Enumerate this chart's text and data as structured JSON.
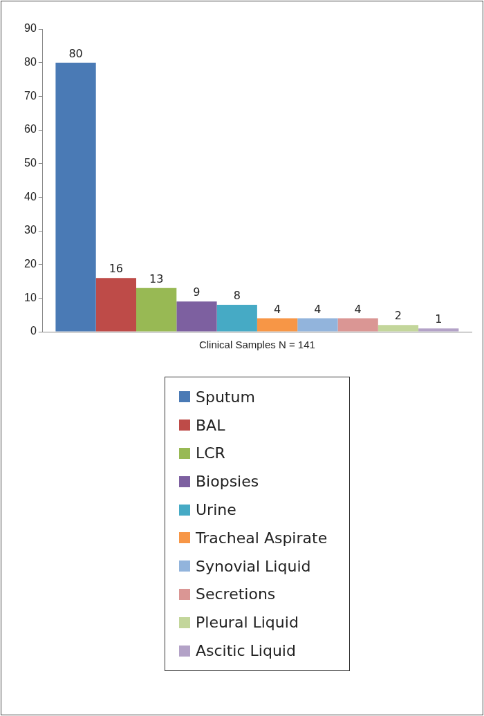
{
  "chart_data": {
    "type": "bar",
    "categories": [
      "Clinical Samples N = 141"
    ],
    "series": [
      {
        "name": "Sputum",
        "color": "#4a7ab5",
        "values": [
          80
        ]
      },
      {
        "name": "BAL",
        "color": "#be4b48",
        "values": [
          16
        ]
      },
      {
        "name": "LCR",
        "color": "#98b954",
        "values": [
          13
        ]
      },
      {
        "name": "Biopsies",
        "color": "#7d60a0",
        "values": [
          9
        ]
      },
      {
        "name": "Urine",
        "color": "#46aac5",
        "values": [
          8
        ]
      },
      {
        "name": "Tracheal Aspirate",
        "color": "#f79646",
        "values": [
          4
        ]
      },
      {
        "name": "Synovial Liquid",
        "color": "#92b4dc",
        "values": [
          4
        ]
      },
      {
        "name": "Secretions",
        "color": "#da9694",
        "values": [
          4
        ]
      },
      {
        "name": "Pleural Liquid",
        "color": "#c3d69b",
        "values": [
          2
        ]
      },
      {
        "name": "Ascitic Liquid",
        "color": "#b3a2c7",
        "values": [
          1
        ]
      }
    ],
    "ylim": [
      0,
      90
    ],
    "yticks": [
      0,
      10,
      20,
      30,
      40,
      50,
      60,
      70,
      80,
      90
    ],
    "data_labels": true,
    "legend": "bottom"
  }
}
